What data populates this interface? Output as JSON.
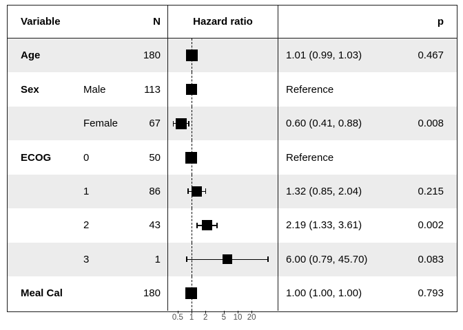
{
  "chart_data": {
    "type": "forest",
    "columns": {
      "variable": "Variable",
      "n": "N",
      "plot": "Hazard ratio",
      "p": "p"
    },
    "rows": [
      {
        "variable": "Age",
        "level": "",
        "n": "180",
        "hr": 1.01,
        "ci_low": 0.99,
        "ci_high": 1.03,
        "estimate_label": "1.01 (0.99, 1.03)",
        "p": "0.467",
        "marker_size": 17,
        "shaded": true
      },
      {
        "variable": "Sex",
        "level": "Male",
        "n": "113",
        "hr": 1.0,
        "ci_low": null,
        "ci_high": null,
        "estimate_label": "Reference",
        "p": "",
        "marker_size": 16,
        "shaded": false
      },
      {
        "variable": "",
        "level": "Female",
        "n": "67",
        "hr": 0.6,
        "ci_low": 0.41,
        "ci_high": 0.88,
        "estimate_label": "0.60 (0.41, 0.88)",
        "p": "0.008",
        "marker_size": 16,
        "shaded": true
      },
      {
        "variable": "ECOG",
        "level": "0",
        "n": "50",
        "hr": 1.0,
        "ci_low": null,
        "ci_high": null,
        "estimate_label": "Reference",
        "p": "",
        "marker_size": 17,
        "shaded": false
      },
      {
        "variable": "",
        "level": "1",
        "n": "86",
        "hr": 1.32,
        "ci_low": 0.85,
        "ci_high": 2.04,
        "estimate_label": "1.32 (0.85, 2.04)",
        "p": "0.215",
        "marker_size": 15,
        "shaded": true
      },
      {
        "variable": "",
        "level": "2",
        "n": "43",
        "hr": 2.19,
        "ci_low": 1.33,
        "ci_high": 3.61,
        "estimate_label": "2.19 (1.33, 3.61)",
        "p": "0.002",
        "marker_size": 15,
        "shaded": false
      },
      {
        "variable": "",
        "level": "3",
        "n": "1",
        "hr": 6.0,
        "ci_low": 0.79,
        "ci_high": 45.7,
        "estimate_label": "6.00 (0.79, 45.70)",
        "p": "0.083",
        "marker_size": 14,
        "shaded": true
      },
      {
        "variable": "Meal Cal",
        "level": "",
        "n": "180",
        "hr": 1.0,
        "ci_low": 1.0,
        "ci_high": 1.0,
        "estimate_label": "1.00 (1.00, 1.00)",
        "p": "0.793",
        "marker_size": 17,
        "shaded": false
      }
    ],
    "x_axis": {
      "scale": "log",
      "ticks": [
        0.5,
        1,
        2,
        5,
        10,
        20
      ],
      "tick_labels": [
        "0.5",
        "1",
        "2",
        "5",
        "10",
        "20"
      ],
      "xlim": [
        0.3,
        76
      ],
      "reference_line": 1
    },
    "colors": {
      "row_shade": "#ececec",
      "border": "#1a1a1a",
      "marker": "#000000",
      "axis_text": "#4d4d4d",
      "text": "#000000",
      "background": "#ffffff"
    }
  }
}
